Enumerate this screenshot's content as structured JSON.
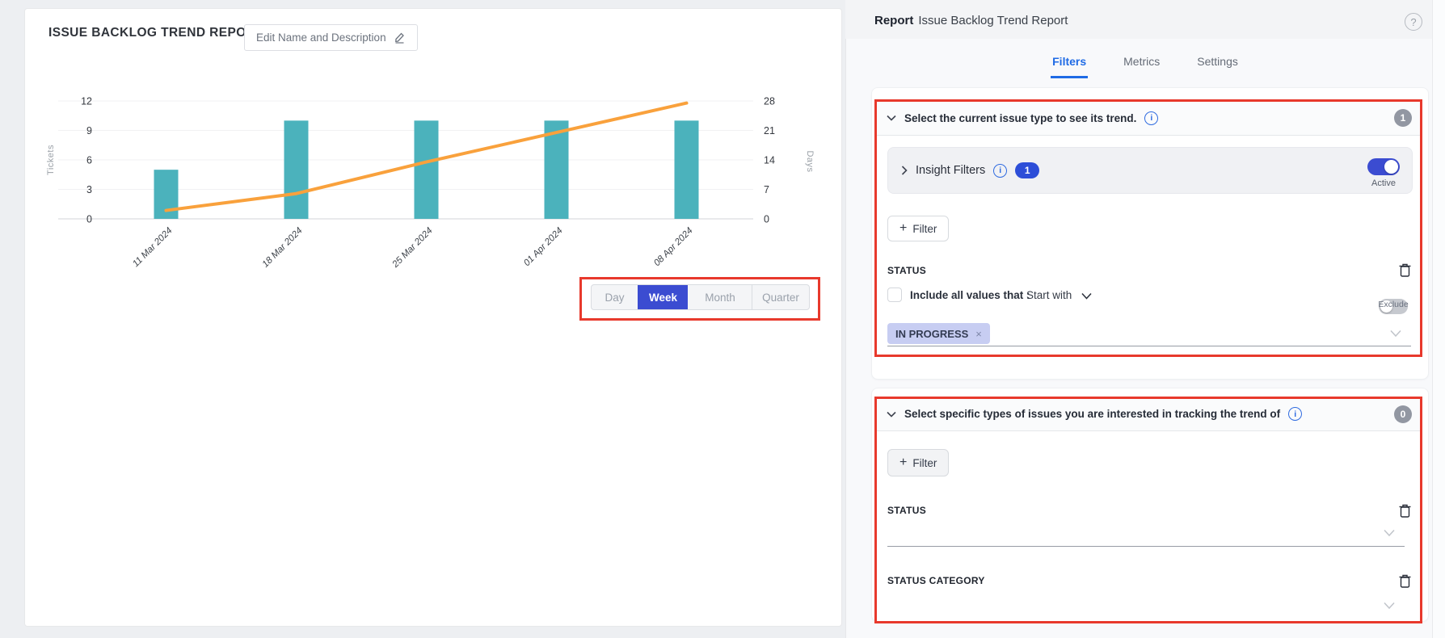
{
  "icons": {
    "plus": "+",
    "help": "?",
    "info": "i",
    "close": "×"
  },
  "annotation_color": "#e8392c",
  "left_panel": {
    "title": "ISSUE BACKLOG TREND REPORT",
    "edit_button_label": "Edit Name and Description",
    "period_toggle": {
      "options": [
        {
          "label": "Day",
          "active": false
        },
        {
          "label": "Week",
          "active": true
        },
        {
          "label": "Month",
          "active": false
        },
        {
          "label": "Quarter",
          "active": false
        }
      ]
    }
  },
  "chart_data": {
    "type": "bar+line combo",
    "categories": [
      "11 Mar 2024",
      "18 Mar 2024",
      "25 Mar 2024",
      "01 Apr 2024",
      "08 Apr 2024"
    ],
    "series": [
      {
        "name": "Tickets",
        "type": "bar",
        "axis": "left",
        "color": "#4bb2bc",
        "values": [
          5,
          10,
          10,
          10,
          10
        ]
      },
      {
        "name": "Days",
        "type": "line",
        "axis": "right",
        "color": "#f9a13c",
        "values": [
          2,
          6,
          13.5,
          20.5,
          27.5
        ]
      }
    ],
    "left_axis": {
      "label": "Tickets",
      "ticks": [
        0,
        3,
        6,
        9,
        12
      ],
      "max": 12
    },
    "right_axis": {
      "label": "Days",
      "ticks": [
        0,
        7,
        14,
        21,
        28
      ],
      "max": 28
    },
    "grid": true,
    "legend": "none"
  },
  "right_panel": {
    "header": {
      "label": "Report",
      "title": "Issue Backlog Trend Report"
    },
    "tabs": [
      {
        "label": "Filters",
        "active": true
      },
      {
        "label": "Metrics",
        "active": false
      },
      {
        "label": "Settings",
        "active": false
      }
    ],
    "section1": {
      "title": "Select the current issue type to see its trend.",
      "badge": "1",
      "insight_filters": {
        "label": "Insight Filters",
        "count": "1",
        "toggle_label": "Active",
        "toggle_on": true
      },
      "filter_button_label": "Filter",
      "status_field": {
        "label": "STATUS"
      },
      "include_label": "Include all values that :",
      "match_option": "Start with",
      "exclude_label": "Exclude",
      "chips": [
        {
          "label": "IN PROGRESS"
        }
      ]
    },
    "section2": {
      "title": "Select specific types of issues you are interested in tracking the trend of",
      "badge": "0",
      "filter_button_label": "Filter",
      "fields": [
        {
          "label": "STATUS"
        },
        {
          "label": "STATUS CATEGORY"
        }
      ]
    }
  }
}
